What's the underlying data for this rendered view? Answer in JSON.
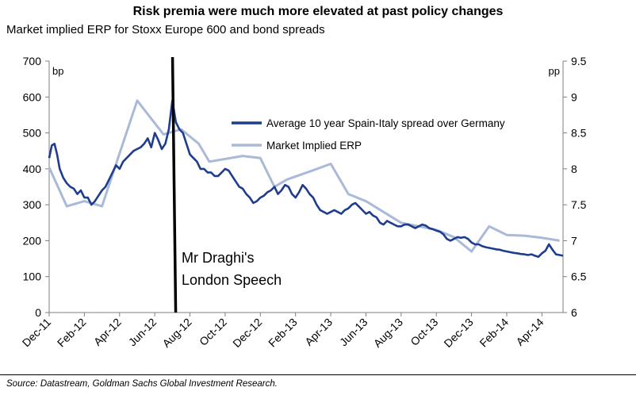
{
  "title": "Risk premia were much more elevated at past policy changes",
  "subtitle": "Market implied ERP for Stoxx Europe 600 and bond spreads",
  "source": "Source: Datastream, Goldman Sachs Global Investment Research.",
  "chart_data": {
    "type": "line",
    "left_axis": {
      "unit": "bp",
      "ylim": [
        0,
        700
      ],
      "ticks": [
        "0",
        "100",
        "200",
        "300",
        "400",
        "500",
        "600",
        "700"
      ]
    },
    "right_axis": {
      "unit": "pp",
      "ylim": [
        6,
        9.5
      ],
      "ticks": [
        "6",
        "6.5",
        "7",
        "7.5",
        "8",
        "8.5",
        "9",
        "9.5"
      ]
    },
    "x_tick_labels": [
      "Dec-11",
      "Feb-12",
      "Apr-12",
      "Jun-12",
      "Aug-12",
      "Oct-12",
      "Dec-12",
      "Feb-13",
      "Apr-13",
      "Jun-13",
      "Aug-13",
      "Oct-13",
      "Dec-13",
      "Feb-14",
      "Apr-14"
    ],
    "x_range_months": [
      0,
      29.2
    ],
    "series": [
      {
        "name": "Average 10 year Spain-Italy spread over Germany",
        "axis": "left",
        "color": "#1f3d8f",
        "points": [
          [
            0,
            430
          ],
          [
            0.15,
            465
          ],
          [
            0.3,
            470
          ],
          [
            0.45,
            440
          ],
          [
            0.6,
            400
          ],
          [
            0.8,
            375
          ],
          [
            1.0,
            360
          ],
          [
            1.2,
            350
          ],
          [
            1.4,
            345
          ],
          [
            1.6,
            330
          ],
          [
            1.8,
            340
          ],
          [
            2.0,
            320
          ],
          [
            2.2,
            320
          ],
          [
            2.4,
            300
          ],
          [
            2.6,
            310
          ],
          [
            2.8,
            325
          ],
          [
            3.0,
            340
          ],
          [
            3.2,
            350
          ],
          [
            3.4,
            370
          ],
          [
            3.6,
            390
          ],
          [
            3.8,
            410
          ],
          [
            4.0,
            400
          ],
          [
            4.2,
            420
          ],
          [
            4.4,
            430
          ],
          [
            4.6,
            440
          ],
          [
            4.8,
            450
          ],
          [
            5.0,
            455
          ],
          [
            5.2,
            460
          ],
          [
            5.4,
            470
          ],
          [
            5.6,
            485
          ],
          [
            5.8,
            460
          ],
          [
            6.0,
            500
          ],
          [
            6.2,
            480
          ],
          [
            6.4,
            455
          ],
          [
            6.6,
            470
          ],
          [
            6.8,
            510
          ],
          [
            7.0,
            590
          ],
          [
            7.2,
            530
          ],
          [
            7.4,
            510
          ],
          [
            7.6,
            500
          ],
          [
            7.8,
            470
          ],
          [
            8.0,
            440
          ],
          [
            8.2,
            430
          ],
          [
            8.4,
            420
          ],
          [
            8.6,
            400
          ],
          [
            8.8,
            400
          ],
          [
            9.0,
            390
          ],
          [
            9.2,
            390
          ],
          [
            9.4,
            380
          ],
          [
            9.6,
            380
          ],
          [
            9.8,
            390
          ],
          [
            10.0,
            400
          ],
          [
            10.2,
            395
          ],
          [
            10.4,
            380
          ],
          [
            10.6,
            365
          ],
          [
            10.8,
            350
          ],
          [
            11.0,
            345
          ],
          [
            11.2,
            330
          ],
          [
            11.4,
            320
          ],
          [
            11.6,
            305
          ],
          [
            11.8,
            310
          ],
          [
            12.0,
            320
          ],
          [
            12.2,
            325
          ],
          [
            12.4,
            335
          ],
          [
            12.6,
            340
          ],
          [
            12.8,
            350
          ],
          [
            13.0,
            330
          ],
          [
            13.2,
            340
          ],
          [
            13.4,
            355
          ],
          [
            13.6,
            350
          ],
          [
            13.8,
            330
          ],
          [
            14.0,
            320
          ],
          [
            14.2,
            335
          ],
          [
            14.4,
            355
          ],
          [
            14.6,
            345
          ],
          [
            14.8,
            330
          ],
          [
            15.0,
            320
          ],
          [
            15.2,
            300
          ],
          [
            15.4,
            285
          ],
          [
            15.6,
            280
          ],
          [
            15.8,
            275
          ],
          [
            16.0,
            280
          ],
          [
            16.2,
            285
          ],
          [
            16.4,
            280
          ],
          [
            16.6,
            275
          ],
          [
            16.8,
            285
          ],
          [
            17.0,
            290
          ],
          [
            17.2,
            300
          ],
          [
            17.4,
            305
          ],
          [
            17.6,
            295
          ],
          [
            17.8,
            285
          ],
          [
            18.0,
            275
          ],
          [
            18.2,
            280
          ],
          [
            18.4,
            270
          ],
          [
            18.6,
            265
          ],
          [
            18.8,
            250
          ],
          [
            19.0,
            245
          ],
          [
            19.2,
            255
          ],
          [
            19.4,
            250
          ],
          [
            19.6,
            245
          ],
          [
            19.8,
            240
          ],
          [
            20.0,
            240
          ],
          [
            20.2,
            245
          ],
          [
            20.4,
            245
          ],
          [
            20.6,
            240
          ],
          [
            20.8,
            235
          ],
          [
            21.0,
            240
          ],
          [
            21.2,
            245
          ],
          [
            21.4,
            242
          ],
          [
            21.6,
            235
          ],
          [
            21.8,
            232
          ],
          [
            22.0,
            228
          ],
          [
            22.2,
            225
          ],
          [
            22.4,
            218
          ],
          [
            22.6,
            205
          ],
          [
            22.8,
            200
          ],
          [
            23.0,
            205
          ],
          [
            23.2,
            210
          ],
          [
            23.4,
            208
          ],
          [
            23.6,
            210
          ],
          [
            23.8,
            205
          ],
          [
            24.0,
            195
          ],
          [
            24.2,
            190
          ],
          [
            24.4,
            190
          ],
          [
            24.6,
            185
          ],
          [
            24.8,
            182
          ],
          [
            25.0,
            180
          ],
          [
            25.2,
            178
          ],
          [
            25.4,
            176
          ],
          [
            25.6,
            175
          ],
          [
            25.8,
            172
          ],
          [
            26.0,
            170
          ],
          [
            26.2,
            168
          ],
          [
            26.4,
            166
          ],
          [
            26.6,
            165
          ],
          [
            26.8,
            163
          ],
          [
            27.0,
            162
          ],
          [
            27.2,
            160
          ],
          [
            27.4,
            162
          ],
          [
            27.6,
            158
          ],
          [
            27.8,
            155
          ],
          [
            28.0,
            165
          ],
          [
            28.2,
            172
          ],
          [
            28.4,
            190
          ],
          [
            28.6,
            175
          ],
          [
            28.8,
            162
          ],
          [
            29.0,
            160
          ],
          [
            29.2,
            158
          ]
        ]
      },
      {
        "name": "Market Implied ERP",
        "axis": "right",
        "color": "#a9b9d8",
        "points": [
          [
            0,
            8.02
          ],
          [
            1.0,
            7.48
          ],
          [
            2.0,
            7.55
          ],
          [
            3.0,
            7.48
          ],
          [
            5.0,
            8.95
          ],
          [
            6.5,
            8.48
          ],
          [
            7.5,
            8.55
          ],
          [
            8.5,
            8.35
          ],
          [
            9.1,
            8.1
          ],
          [
            11.0,
            8.18
          ],
          [
            12.0,
            8.15
          ],
          [
            12.8,
            7.75
          ],
          [
            13.5,
            7.85
          ],
          [
            15.0,
            7.98
          ],
          [
            16.0,
            8.07
          ],
          [
            17.0,
            7.65
          ],
          [
            18.0,
            7.55
          ],
          [
            19.0,
            7.4
          ],
          [
            20.0,
            7.25
          ],
          [
            22.0,
            7.15
          ],
          [
            23.0,
            7.05
          ],
          [
            24.0,
            6.85
          ],
          [
            25.0,
            7.2
          ],
          [
            26.0,
            7.08
          ],
          [
            27.0,
            7.07
          ],
          [
            28.0,
            7.04
          ],
          [
            29.0,
            7.0
          ]
        ]
      }
    ],
    "marker_line_month": 7.1,
    "annotations": [
      "Mr Draghi's",
      "London Speech"
    ]
  },
  "legend": {
    "spread_label": "Average 10 year Spain-Italy spread over Germany",
    "erp_label": "Market Implied ERP"
  },
  "colors": {
    "spread": "#1f3d8f",
    "erp": "#a9b9d8",
    "axis": "#7f7f7f"
  }
}
